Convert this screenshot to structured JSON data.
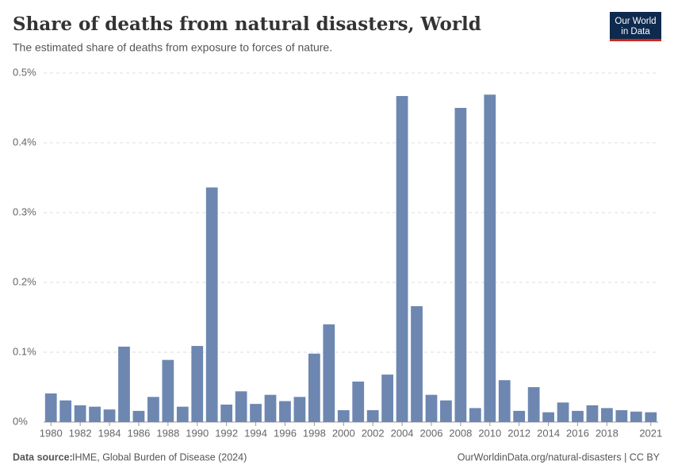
{
  "chart_data": {
    "type": "bar",
    "title": "Share of deaths from natural disasters, World",
    "subtitle": "The estimated share of deaths from exposure to forces of nature.",
    "logo": [
      "Our World",
      "in Data"
    ],
    "source_label": "Data source:",
    "source": "IHME, Global Burden of Disease (2024)",
    "url": "OurWorldinData.org/natural-disasters | CC BY",
    "color": "#6d87b1",
    "categories": [
      "1980",
      null,
      "1982",
      null,
      "1984",
      null,
      "1986",
      null,
      "1988",
      null,
      "1990",
      null,
      "1992",
      null,
      "1994",
      null,
      "1996",
      null,
      "1998",
      null,
      "2000",
      null,
      "2002",
      null,
      "2004",
      null,
      "2006",
      null,
      "2008",
      null,
      "2010",
      null,
      "2012",
      null,
      "2014",
      null,
      "2016",
      null,
      "2018",
      null,
      null,
      "2021"
    ],
    "values": [
      0.041,
      0.031,
      0.024,
      0.022,
      0.018,
      0.108,
      0.016,
      0.036,
      0.089,
      0.022,
      0.109,
      0.336,
      0.025,
      0.044,
      0.026,
      0.039,
      0.03,
      0.036,
      0.098,
      0.14,
      0.017,
      0.058,
      0.017,
      0.068,
      0.467,
      0.166,
      0.039,
      0.031,
      0.45,
      0.02,
      0.469,
      0.06,
      0.016,
      0.05,
      0.014,
      0.028,
      0.016,
      0.024,
      0.02,
      0.017,
      0.015,
      0.014
    ],
    "ylim": [
      0,
      0.5
    ],
    "yticks": [
      {
        "value": 0,
        "label": "0%"
      },
      {
        "value": 0.1,
        "label": "0.1%"
      },
      {
        "value": 0.2,
        "label": "0.2%"
      },
      {
        "value": 0.3,
        "label": "0.3%"
      },
      {
        "value": 0.4,
        "label": "0.4%"
      },
      {
        "value": 0.5,
        "label": "0.5%"
      }
    ],
    "grid": true
  }
}
